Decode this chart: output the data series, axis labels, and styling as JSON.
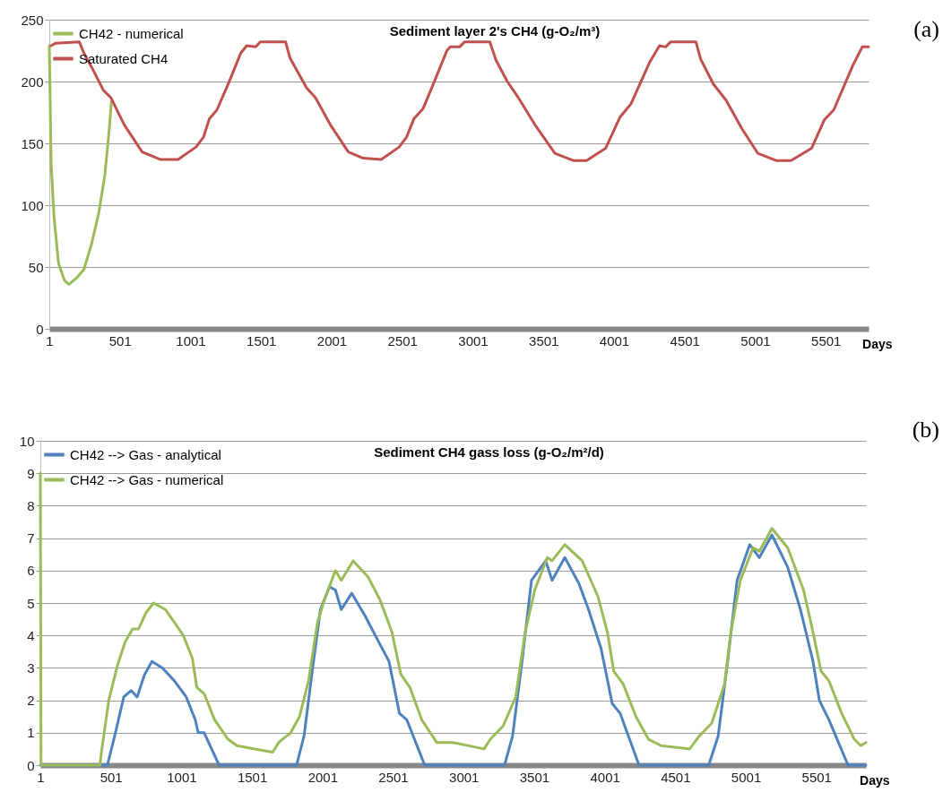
{
  "chart_data": [
    {
      "type": "line",
      "title": "Sediment layer 2's CH4 (g-O₂/m³)",
      "xlabel": "Days",
      "xlim": [
        1,
        5804
      ],
      "xticks": [
        1,
        501,
        1001,
        1501,
        2001,
        2501,
        3001,
        3501,
        4001,
        4501,
        5001,
        5501
      ],
      "ylim": [
        0,
        250
      ],
      "yticks": [
        0,
        50,
        100,
        150,
        200,
        250
      ],
      "grid": "y",
      "legend": "top left",
      "annotations": [
        "(a)"
      ],
      "series": [
        {
          "name": "CH42 - numerical",
          "color": "#9bbb59",
          "x": [
            1,
            14,
            35,
            66,
            109,
            140,
            193,
            246,
            299,
            352,
            394,
            426,
            441
          ],
          "values": [
            229,
            133,
            90,
            53,
            39,
            36,
            41,
            48,
            68,
            94,
            124,
            162,
            184
          ]
        },
        {
          "name": "Saturated CH4",
          "color": "#c0504d",
          "x": [
            14,
            45,
            214,
            246,
            299,
            384,
            437,
            532,
            659,
            786,
            913,
            1040,
            1093,
            1135,
            1188,
            1272,
            1357,
            1399,
            1463,
            1495,
            1675,
            1706,
            1823,
            1886,
            1992,
            2119,
            2225,
            2352,
            2479,
            2531,
            2584,
            2648,
            2732,
            2817,
            2841,
            2907,
            2942,
            3121,
            3166,
            3245,
            3323,
            3447,
            3582,
            3716,
            3806,
            3941,
            4042,
            4121,
            4255,
            4323,
            4367,
            4401,
            4581,
            4615,
            4704,
            4794,
            4906,
            5019,
            5153,
            5254,
            5400,
            5490,
            5557,
            5692,
            5759,
            5804
          ],
          "values": [
            229,
            231,
            232,
            223,
            212,
            193,
            187,
            165,
            143,
            137,
            137,
            147,
            155,
            170,
            177,
            199,
            223,
            229,
            228,
            232,
            232,
            219,
            195,
            187,
            165,
            143,
            138,
            137,
            147,
            155,
            170,
            178,
            201,
            225,
            228,
            228,
            232,
            232,
            217,
            200,
            187,
            164,
            142,
            136,
            136,
            146,
            171,
            182,
            216,
            229,
            228,
            232,
            232,
            218,
            198,
            185,
            162,
            142,
            136,
            136,
            146,
            169,
            177,
            213,
            228,
            228
          ]
        }
      ]
    },
    {
      "type": "line",
      "title": "Sediment CH4 gass loss (g-O₂/m²/d)",
      "xlabel": "Days",
      "xlim": [
        1,
        5852
      ],
      "xticks": [
        1,
        501,
        1001,
        1501,
        2001,
        2501,
        3001,
        3501,
        4001,
        4501,
        5001,
        5501
      ],
      "ylim": [
        0,
        10
      ],
      "yticks": [
        0,
        1,
        2,
        3,
        4,
        5,
        6,
        7,
        8,
        9,
        10
      ],
      "grid": "y",
      "legend": "top left",
      "annotations": [
        "(b)"
      ],
      "series": [
        {
          "name": "CH42 --> Gas - analytical",
          "color": "#4f81bd",
          "x": [
            1,
            476,
            528,
            592,
            645,
            687,
            740,
            792,
            866,
            951,
            1035,
            1099,
            1120,
            1162,
            1268,
            1817,
            1870,
            1934,
            1986,
            2050,
            2092,
            2134,
            2208,
            2303,
            2387,
            2472,
            2546,
            2598,
            2725,
            3291,
            3348,
            3415,
            3482,
            3583,
            3628,
            3718,
            3818,
            3886,
            3975,
            4054,
            4110,
            4244,
            4738,
            4805,
            4872,
            4939,
            5029,
            5097,
            5186,
            5298,
            5388,
            5477,
            5522,
            5590,
            5725,
            5852
          ],
          "values": [
            0,
            0,
            0.9,
            2.1,
            2.3,
            2.1,
            2.8,
            3.2,
            3.0,
            2.6,
            2.1,
            1.4,
            1.0,
            1.0,
            0,
            0,
            0.9,
            3.1,
            4.8,
            5.5,
            5.4,
            4.8,
            5.3,
            4.6,
            3.9,
            3.2,
            1.6,
            1.4,
            0,
            0,
            0.9,
            3.2,
            5.7,
            6.3,
            5.7,
            6.4,
            5.6,
            4.8,
            3.6,
            1.9,
            1.6,
            0,
            0,
            0.9,
            3.2,
            5.7,
            6.8,
            6.4,
            7.1,
            6.1,
            4.8,
            3.2,
            2.0,
            1.4,
            0,
            0
          ]
        },
        {
          "name": "CH42 --> Gas  - numerical",
          "color": "#9bbb59",
          "x": [
            1,
            6,
            423,
            434,
            486,
            549,
            602,
            655,
            697,
            750,
            803,
            887,
            951,
            1014,
            1078,
            1110,
            1162,
            1236,
            1331,
            1395,
            1521,
            1648,
            1690,
            1775,
            1838,
            1902,
            1965,
            2007,
            2092,
            2134,
            2218,
            2324,
            2408,
            2493,
            2556,
            2620,
            2704,
            2810,
            2922,
            3146,
            3190,
            3280,
            3370,
            3437,
            3505,
            3594,
            3628,
            3718,
            3841,
            3953,
            4020,
            4065,
            4132,
            4222,
            4311,
            4401,
            4603,
            4671,
            4760,
            4850,
            4895,
            4962,
            5052,
            5097,
            5186,
            5298,
            5410,
            5477,
            5534,
            5590,
            5680,
            5770,
            5815,
            5852
          ],
          "values": [
            9,
            0,
            0,
            0.4,
            2.0,
            3.1,
            3.8,
            4.2,
            4.2,
            4.7,
            5.0,
            4.8,
            4.4,
            4.0,
            3.3,
            2.4,
            2.2,
            1.4,
            0.8,
            0.6,
            0.5,
            0.4,
            0.7,
            1.0,
            1.5,
            2.6,
            4.4,
            5.0,
            6.0,
            5.7,
            6.3,
            5.8,
            5.1,
            4.1,
            2.8,
            2.4,
            1.4,
            0.7,
            0.7,
            0.5,
            0.8,
            1.2,
            2.1,
            4.1,
            5.4,
            6.4,
            6.3,
            6.8,
            6.3,
            5.2,
            4.1,
            2.9,
            2.5,
            1.5,
            0.8,
            0.6,
            0.5,
            0.9,
            1.3,
            2.5,
            4.1,
            5.7,
            6.7,
            6.6,
            7.3,
            6.7,
            5.4,
            4.1,
            2.9,
            2.6,
            1.6,
            0.8,
            0.6,
            0.7
          ]
        }
      ]
    }
  ]
}
